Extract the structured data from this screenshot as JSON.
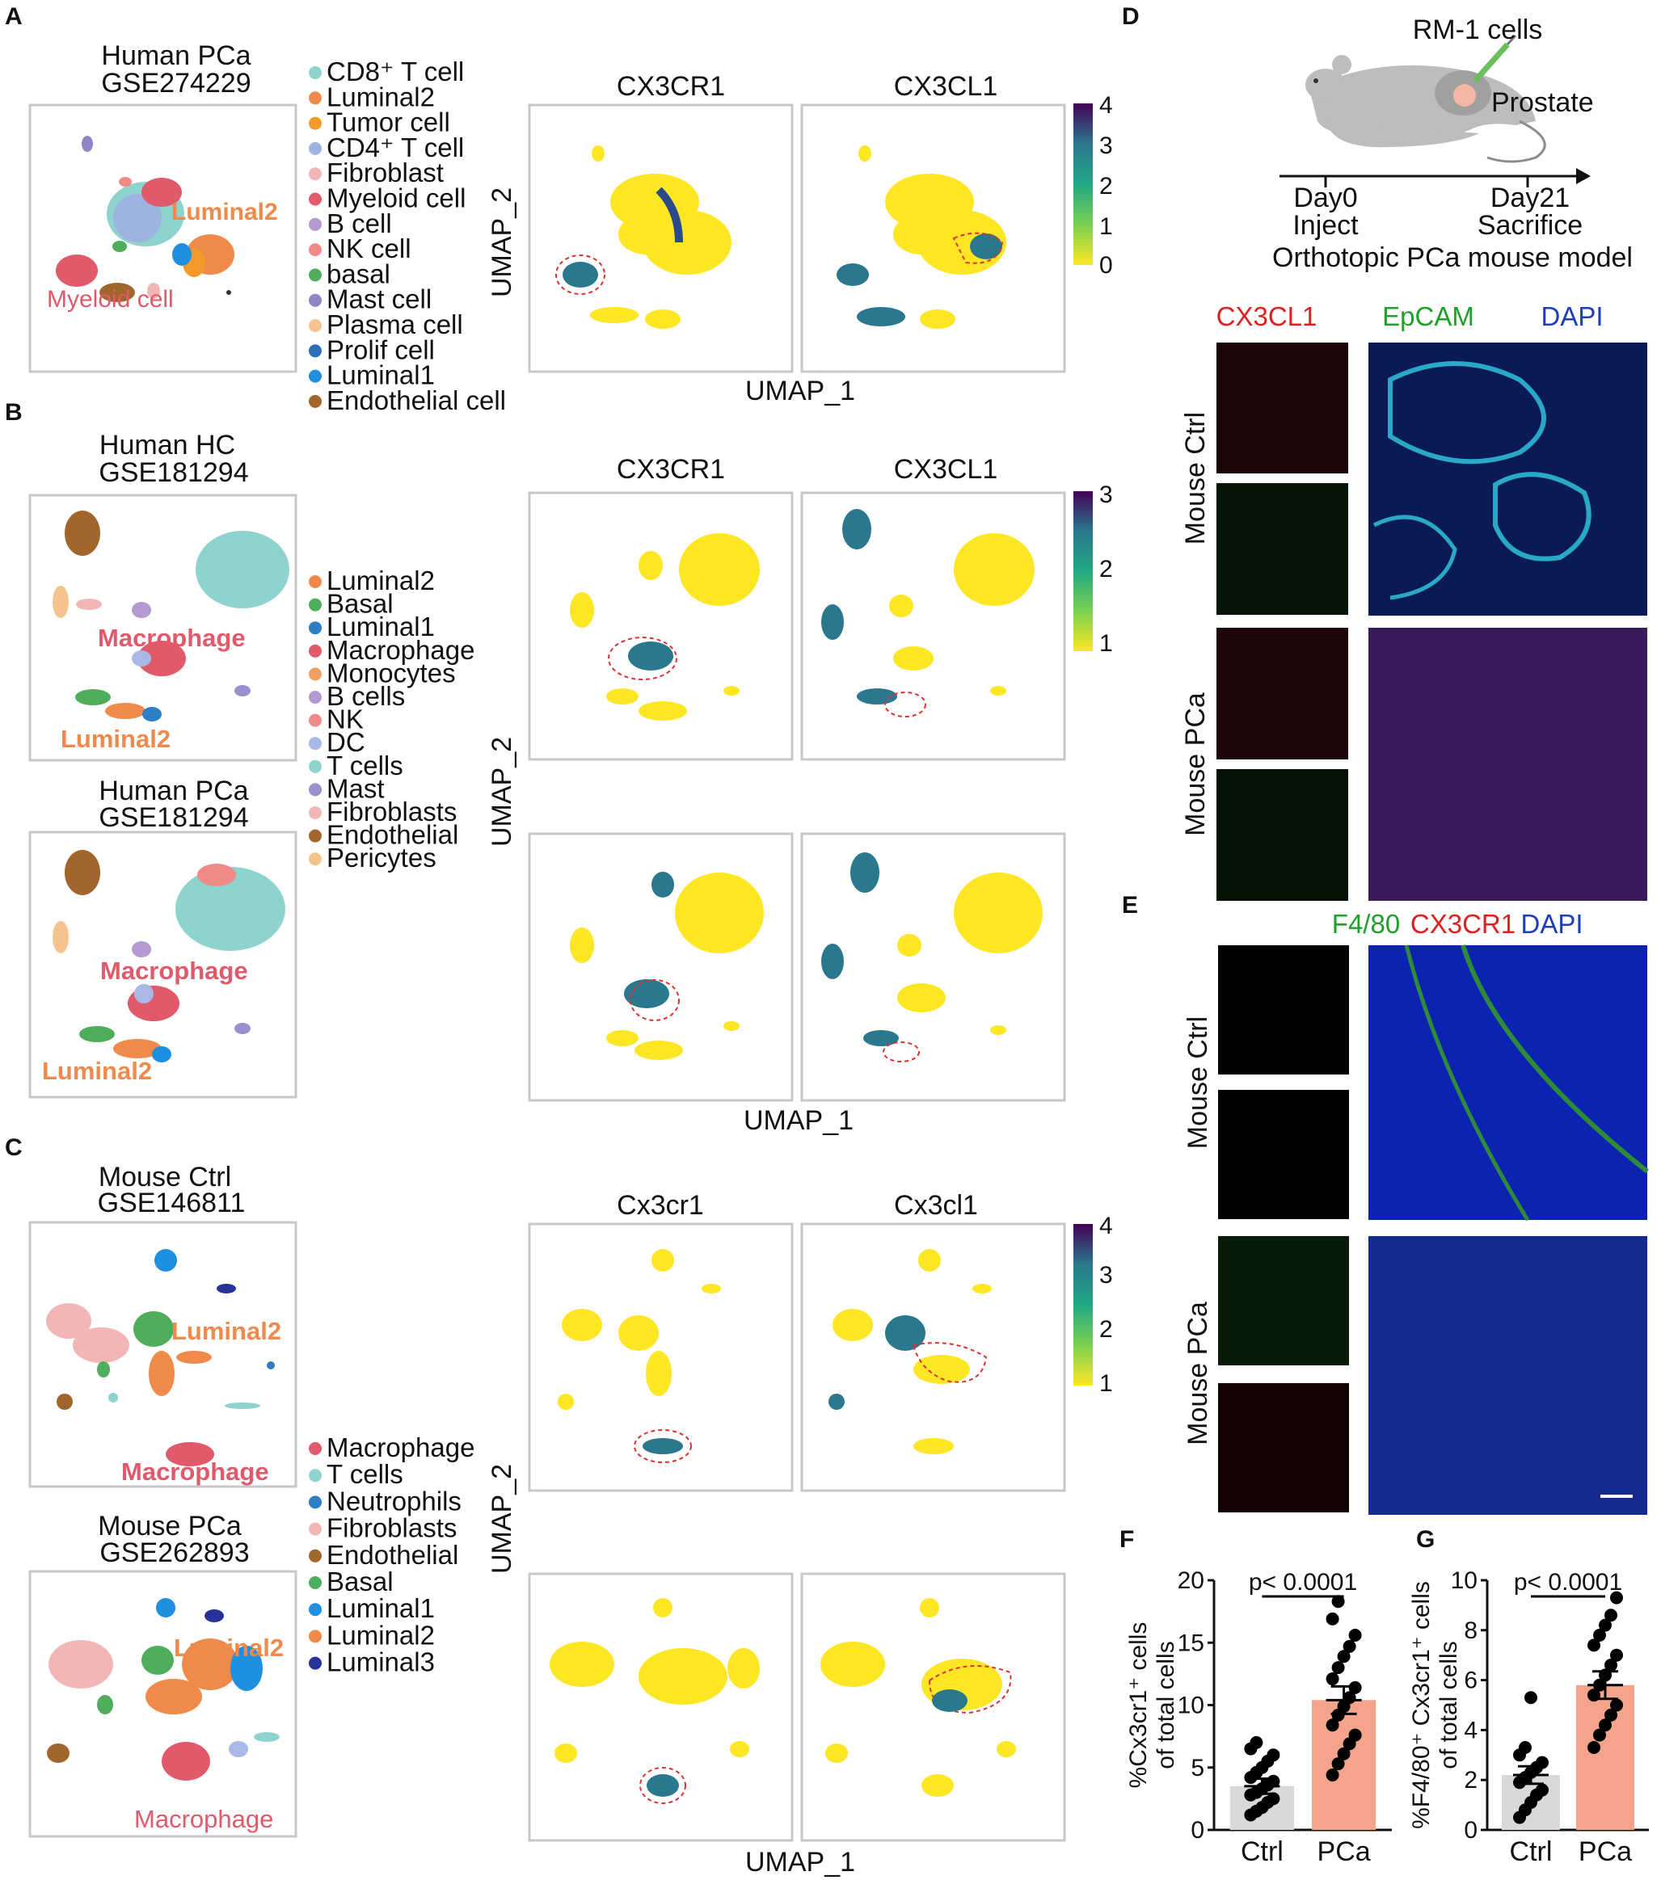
{
  "panel_letters": {
    "A": "A",
    "B": "B",
    "C": "C",
    "D": "D",
    "E": "E",
    "F": "F",
    "G": "G"
  },
  "panelA": {
    "title1": "Human PCa",
    "title2": "GSE274229",
    "genes": [
      "CX3CR1",
      "CX3CL1"
    ],
    "labels": {
      "luminal2": "Luminal2",
      "myeloid": "Myeloid cell"
    },
    "umap_x": "UMAP_1",
    "umap_y": "UMAP_2",
    "colorbar_ticks": [
      "4",
      "3",
      "2",
      "1",
      "0"
    ],
    "legend": [
      {
        "label": "CD8⁺ T cell",
        "color": "#8fd3cf"
      },
      {
        "label": "Luminal2",
        "color": "#f08a4b"
      },
      {
        "label": "Tumor cell",
        "color": "#f39a2a"
      },
      {
        "label": "CD4⁺ T cell",
        "color": "#9eb3e0"
      },
      {
        "label": "Fibroblast",
        "color": "#f3b6b6"
      },
      {
        "label": "Myeloid cell",
        "color": "#e05a6b"
      },
      {
        "label": "B cell",
        "color": "#b49ad0"
      },
      {
        "label": "NK cell",
        "color": "#ef8a86"
      },
      {
        "label": "basal",
        "color": "#4fae5c"
      },
      {
        "label": "Mast cell",
        "color": "#8f86c6"
      },
      {
        "label": "Plasma cell",
        "color": "#f4c38e"
      },
      {
        "label": "Prolif cell",
        "color": "#2d6fb4"
      },
      {
        "label": "Luminal1",
        "color": "#1f8fe0"
      },
      {
        "label": "Endothelial cell",
        "color": "#a2662c"
      }
    ]
  },
  "panelB": {
    "title_hc1": "Human HC",
    "title_hc2": "GSE181294",
    "title_pca1": "Human PCa",
    "title_pca2": "GSE181294",
    "genes": [
      "CX3CR1",
      "CX3CL1"
    ],
    "labels": {
      "macrophage": "Macrophage",
      "luminal2": "Luminal2"
    },
    "umap_x": "UMAP_1",
    "umap_y": "UMAP_2",
    "colorbar_ticks": [
      "3",
      "2",
      "1"
    ],
    "legend": [
      {
        "label": "Luminal2",
        "color": "#f08a4b"
      },
      {
        "label": "Basal",
        "color": "#4fae5c"
      },
      {
        "label": "Luminal1",
        "color": "#2d7fc4"
      },
      {
        "label": "Macrophage",
        "color": "#e05a6b"
      },
      {
        "label": "Monocytes",
        "color": "#f0a060"
      },
      {
        "label": "B cells",
        "color": "#b49ad0"
      },
      {
        "label": "NK",
        "color": "#ef8a86"
      },
      {
        "label": "DC",
        "color": "#a9b8e6"
      },
      {
        "label": "T cells",
        "color": "#8fd3cf"
      },
      {
        "label": "Mast",
        "color": "#9b8fcc"
      },
      {
        "label": "Fibroblasts",
        "color": "#f3b6b6"
      },
      {
        "label": "Endothelial",
        "color": "#a2662c"
      },
      {
        "label": "Pericytes",
        "color": "#f4c38e"
      }
    ]
  },
  "panelC": {
    "title_ctrl1": "Mouse Ctrl",
    "title_ctrl2": "GSE146811",
    "title_pca1": "Mouse PCa",
    "title_pca2": "GSE262893",
    "genes": [
      "Cx3cr1",
      "Cx3cl1"
    ],
    "labels": {
      "luminal2": "Luminal2",
      "macrophage": "Macrophage"
    },
    "umap_x": "UMAP_1",
    "umap_y": "UMAP_2",
    "colorbar_ticks": [
      "4",
      "3",
      "2",
      "1"
    ],
    "legend": [
      {
        "label": "Macrophage",
        "color": "#e05a6b"
      },
      {
        "label": "T cells",
        "color": "#8fd3cf"
      },
      {
        "label": "Neutrophils",
        "color": "#2d7fc4"
      },
      {
        "label": "Fibroblasts",
        "color": "#f3b6b6"
      },
      {
        "label": "Endothelial",
        "color": "#a2662c"
      },
      {
        "label": "Basal",
        "color": "#4fae5c"
      },
      {
        "label": "Luminal1",
        "color": "#1f8fe0"
      },
      {
        "label": "Luminal2",
        "color": "#f08a4b"
      },
      {
        "label": "Luminal3",
        "color": "#27339a"
      }
    ]
  },
  "panelD": {
    "cells": "RM-1 cells",
    "prostate": "Prostate",
    "day0": "Day0",
    "inject": "Inject",
    "day21": "Day21",
    "sacrifice": "Sacrifice",
    "model": "Orthotopic PCa mouse model",
    "stain1": "CX3CL1",
    "stain2": "EpCAM",
    "stain3": "DAPI",
    "row1": "Mouse Ctrl",
    "row2": "Mouse PCa"
  },
  "panelE": {
    "stain1": "F4/80",
    "stain2": "CX3CR1",
    "stain3": "DAPI",
    "row1": "Mouse Ctrl",
    "row2": "Mouse PCa"
  },
  "chart_data": [
    {
      "type": "bar",
      "panel": "F",
      "categories": [
        "Ctrl",
        "PCa"
      ],
      "values": [
        3.5,
        10.4
      ],
      "sem": [
        0.6,
        1.1
      ],
      "colors": [
        "#d9d9d9",
        "#f4a48a"
      ],
      "points": [
        [
          1.2,
          1.5,
          1.8,
          2.2,
          2.5,
          2.8,
          3.0,
          3.3,
          3.6,
          3.9,
          4.2,
          4.6,
          5.0,
          5.5,
          6.0,
          6.5,
          7.0
        ],
        [
          4.4,
          5.3,
          6.1,
          6.9,
          7.6,
          8.4,
          9.2,
          9.9,
          10.6,
          11.4,
          12.1,
          13.0,
          13.9,
          14.7,
          15.6,
          16.9,
          18.3
        ]
      ],
      "ylabel_line1": "%Cx3cr1⁺ cells",
      "ylabel_line2": "of total cells",
      "ylim": [
        0,
        20
      ],
      "yticks": [
        "0",
        "5",
        "10",
        "15",
        "20"
      ],
      "pvalue": "p< 0.0001"
    },
    {
      "type": "bar",
      "panel": "G",
      "categories": [
        "Ctrl",
        "PCa"
      ],
      "values": [
        2.2,
        5.8
      ],
      "sem": [
        0.35,
        0.55
      ],
      "colors": [
        "#d9d9d9",
        "#f4a48a"
      ],
      "points": [
        [
          0.5,
          0.8,
          1.1,
          1.4,
          1.6,
          1.9,
          2.1,
          2.3,
          2.5,
          2.7,
          3.0,
          3.3,
          5.3
        ],
        [
          3.3,
          3.8,
          4.2,
          4.6,
          5.0,
          5.4,
          5.8,
          6.2,
          6.6,
          7.0,
          7.4,
          7.8,
          8.2,
          8.6,
          9.3
        ]
      ],
      "ylabel_line1": "%F4/80⁺ Cx3cr1⁺ cells",
      "ylabel_line2": "of total cells",
      "ylim": [
        0,
        10
      ],
      "yticks": [
        "0",
        "2",
        "4",
        "6",
        "8",
        "10"
      ],
      "pvalue": "p< 0.0001"
    }
  ]
}
